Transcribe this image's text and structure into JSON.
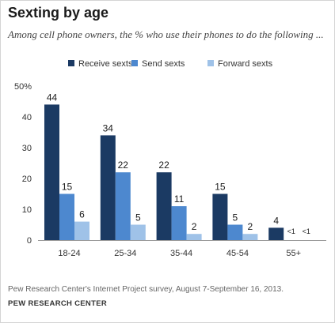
{
  "chart_data": {
    "type": "bar",
    "title": "Sexting by age",
    "subtitle": "Among cell phone owners, the % who use their phones to do the following ...",
    "categories": [
      "18-24",
      "25-34",
      "35-44",
      "45-54",
      "55+"
    ],
    "series": [
      {
        "name": "Receive sexts",
        "values": [
          44,
          34,
          22,
          15,
          4
        ],
        "labels": [
          "44",
          "34",
          "22",
          "15",
          "4"
        ],
        "color": "#1b3a63"
      },
      {
        "name": "Send sexts",
        "values": [
          15,
          22,
          11,
          5,
          0.5
        ],
        "labels": [
          "15",
          "22",
          "11",
          "5",
          "<1"
        ],
        "color": "#4d88cf"
      },
      {
        "name": "Forward sexts",
        "values": [
          6,
          5,
          2,
          2,
          0.5
        ],
        "labels": [
          "6",
          "5",
          "2",
          "2",
          "<1"
        ],
        "color": "#9fc2e8"
      }
    ],
    "ylim": [
      0,
      50
    ],
    "yticks": [
      "0",
      "10",
      "20",
      "30",
      "40",
      "50%"
    ],
    "legend_position": "top",
    "grid": false
  },
  "footer": {
    "note": "Pew Research Center's Internet Project survey, August 7-September 16, 2013.",
    "source": "PEW RESEARCH CENTER"
  }
}
